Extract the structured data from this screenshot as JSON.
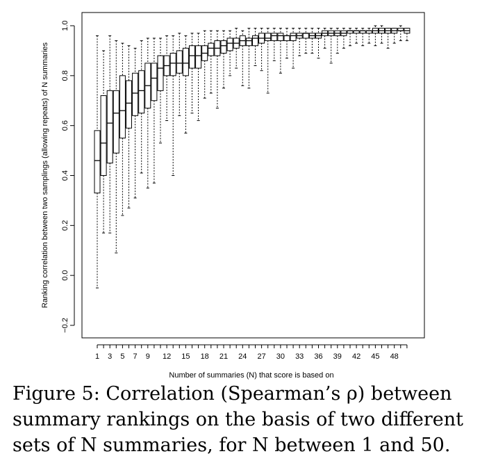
{
  "chart_data": {
    "type": "boxplot",
    "xlabel": "Number of summaries (N) that score is based on",
    "ylabel": "Ranking correlation between two samplings (allowing repeats) of N summaries",
    "ylim": [
      -0.2,
      1.0
    ],
    "y_ticks": [
      "−0.2",
      "0.0",
      "0.2",
      "0.4",
      "0.6",
      "0.8",
      "1.0"
    ],
    "x_tick_labels": [
      "1",
      "3",
      "5",
      "7",
      "9",
      "12",
      "15",
      "18",
      "21",
      "24",
      "27",
      "30",
      "33",
      "36",
      "39",
      "42",
      "45",
      "48"
    ],
    "x_tick_positions": [
      1,
      3,
      5,
      7,
      9,
      12,
      15,
      18,
      21,
      24,
      27,
      30,
      33,
      36,
      39,
      42,
      45,
      48
    ],
    "categories": [
      1,
      2,
      3,
      4,
      5,
      6,
      7,
      8,
      9,
      10,
      11,
      12,
      13,
      14,
      15,
      16,
      17,
      18,
      19,
      20,
      21,
      22,
      23,
      24,
      25,
      26,
      27,
      28,
      29,
      30,
      31,
      32,
      33,
      34,
      35,
      36,
      37,
      38,
      39,
      40,
      41,
      42,
      43,
      44,
      45,
      46,
      47,
      48,
      49,
      50
    ],
    "boxes": [
      {
        "min": -0.05,
        "q1": 0.33,
        "median": 0.46,
        "q3": 0.58,
        "max": 0.96
      },
      {
        "min": 0.17,
        "q1": 0.4,
        "median": 0.53,
        "q3": 0.72,
        "max": 0.9
      },
      {
        "min": 0.17,
        "q1": 0.45,
        "median": 0.61,
        "q3": 0.74,
        "max": 0.96
      },
      {
        "min": 0.09,
        "q1": 0.49,
        "median": 0.65,
        "q3": 0.74,
        "max": 0.94
      },
      {
        "min": 0.24,
        "q1": 0.55,
        "median": 0.66,
        "q3": 0.8,
        "max": 0.93
      },
      {
        "min": 0.27,
        "q1": 0.59,
        "median": 0.69,
        "q3": 0.78,
        "max": 0.92
      },
      {
        "min": 0.31,
        "q1": 0.64,
        "median": 0.73,
        "q3": 0.81,
        "max": 0.91
      },
      {
        "min": 0.41,
        "q1": 0.65,
        "median": 0.74,
        "q3": 0.82,
        "max": 0.94
      },
      {
        "min": 0.35,
        "q1": 0.67,
        "median": 0.76,
        "q3": 0.85,
        "max": 0.95
      },
      {
        "min": 0.37,
        "q1": 0.7,
        "median": 0.79,
        "q3": 0.85,
        "max": 0.95
      },
      {
        "min": 0.53,
        "q1": 0.74,
        "median": 0.83,
        "q3": 0.88,
        "max": 0.95
      },
      {
        "min": 0.62,
        "q1": 0.8,
        "median": 0.84,
        "q3": 0.88,
        "max": 0.96
      },
      {
        "min": 0.4,
        "q1": 0.8,
        "median": 0.85,
        "q3": 0.89,
        "max": 0.96
      },
      {
        "min": 0.64,
        "q1": 0.81,
        "median": 0.85,
        "q3": 0.9,
        "max": 0.97
      },
      {
        "min": 0.57,
        "q1": 0.8,
        "median": 0.85,
        "q3": 0.91,
        "max": 0.96
      },
      {
        "min": 0.65,
        "q1": 0.83,
        "median": 0.88,
        "q3": 0.92,
        "max": 0.97
      },
      {
        "min": 0.62,
        "q1": 0.83,
        "median": 0.88,
        "q3": 0.92,
        "max": 0.97
      },
      {
        "min": 0.71,
        "q1": 0.86,
        "median": 0.89,
        "q3": 0.92,
        "max": 0.98
      },
      {
        "min": 0.73,
        "q1": 0.88,
        "median": 0.91,
        "q3": 0.93,
        "max": 0.98
      },
      {
        "min": 0.67,
        "q1": 0.88,
        "median": 0.91,
        "q3": 0.94,
        "max": 0.98
      },
      {
        "min": 0.75,
        "q1": 0.89,
        "median": 0.92,
        "q3": 0.94,
        "max": 0.98
      },
      {
        "min": 0.8,
        "q1": 0.9,
        "median": 0.93,
        "q3": 0.95,
        "max": 0.98
      },
      {
        "min": 0.83,
        "q1": 0.91,
        "median": 0.93,
        "q3": 0.95,
        "max": 0.99
      },
      {
        "min": 0.76,
        "q1": 0.92,
        "median": 0.94,
        "q3": 0.96,
        "max": 0.98
      },
      {
        "min": 0.75,
        "q1": 0.92,
        "median": 0.94,
        "q3": 0.95,
        "max": 0.99
      },
      {
        "min": 0.84,
        "q1": 0.92,
        "median": 0.95,
        "q3": 0.96,
        "max": 0.99
      },
      {
        "min": 0.82,
        "q1": 0.93,
        "median": 0.95,
        "q3": 0.97,
        "max": 0.99
      },
      {
        "min": 0.73,
        "q1": 0.94,
        "median": 0.95,
        "q3": 0.97,
        "max": 0.99
      },
      {
        "min": 0.86,
        "q1": 0.94,
        "median": 0.96,
        "q3": 0.97,
        "max": 0.99
      },
      {
        "min": 0.81,
        "q1": 0.94,
        "median": 0.96,
        "q3": 0.97,
        "max": 0.99
      },
      {
        "min": 0.87,
        "q1": 0.94,
        "median": 0.96,
        "q3": 0.96,
        "max": 0.99
      },
      {
        "min": 0.83,
        "q1": 0.94,
        "median": 0.96,
        "q3": 0.97,
        "max": 0.99
      },
      {
        "min": 0.88,
        "q1": 0.95,
        "median": 0.96,
        "q3": 0.97,
        "max": 0.99
      },
      {
        "min": 0.89,
        "q1": 0.95,
        "median": 0.97,
        "q3": 0.97,
        "max": 0.99
      },
      {
        "min": 0.89,
        "q1": 0.95,
        "median": 0.96,
        "q3": 0.97,
        "max": 0.99
      },
      {
        "min": 0.87,
        "q1": 0.95,
        "median": 0.96,
        "q3": 0.97,
        "max": 0.99
      },
      {
        "min": 0.91,
        "q1": 0.96,
        "median": 0.97,
        "q3": 0.98,
        "max": 0.99
      },
      {
        "min": 0.85,
        "q1": 0.96,
        "median": 0.97,
        "q3": 0.98,
        "max": 0.99
      },
      {
        "min": 0.89,
        "q1": 0.96,
        "median": 0.97,
        "q3": 0.98,
        "max": 0.99
      },
      {
        "min": 0.91,
        "q1": 0.96,
        "median": 0.97,
        "q3": 0.98,
        "max": 0.99
      },
      {
        "min": 0.92,
        "q1": 0.97,
        "median": 0.98,
        "q3": 0.98,
        "max": 0.99
      },
      {
        "min": 0.93,
        "q1": 0.97,
        "median": 0.98,
        "q3": 0.98,
        "max": 0.99
      },
      {
        "min": 0.92,
        "q1": 0.97,
        "median": 0.98,
        "q3": 0.98,
        "max": 0.99
      },
      {
        "min": 0.93,
        "q1": 0.97,
        "median": 0.98,
        "q3": 0.98,
        "max": 0.99
      },
      {
        "min": 0.92,
        "q1": 0.97,
        "median": 0.98,
        "q3": 0.99,
        "max": 1.0
      },
      {
        "min": 0.93,
        "q1": 0.97,
        "median": 0.98,
        "q3": 0.99,
        "max": 1.0
      },
      {
        "min": 0.91,
        "q1": 0.97,
        "median": 0.98,
        "q3": 0.99,
        "max": 0.99
      },
      {
        "min": 0.93,
        "q1": 0.97,
        "median": 0.98,
        "q3": 0.99,
        "max": 0.99
      },
      {
        "min": 0.94,
        "q1": 0.98,
        "median": 0.98,
        "q3": 0.99,
        "max": 1.0
      },
      {
        "min": 0.94,
        "q1": 0.97,
        "median": 0.98,
        "q3": 0.99,
        "max": 0.99
      }
    ],
    "grid": false,
    "legend": "none"
  },
  "caption": "Figure 5:  Correlation (Spearman’s ρ) between\nsummary rankings on the basis of two different\nsets of N summaries, for N between 1 and 50."
}
